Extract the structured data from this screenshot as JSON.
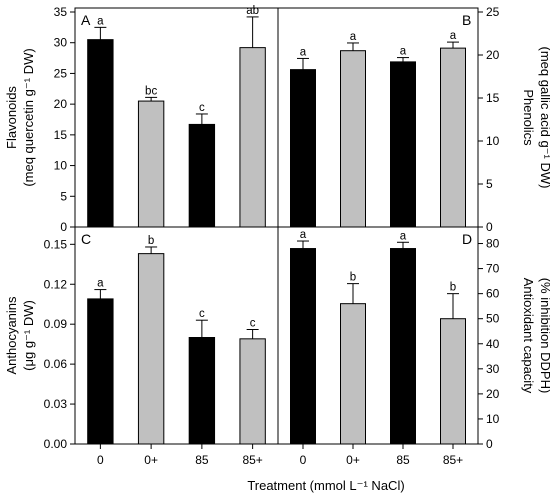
{
  "chart_data": [
    {
      "type": "bar",
      "panel": "A",
      "categories": [
        "0",
        "0+",
        "85",
        "85+"
      ],
      "values": [
        30.5,
        20.5,
        16.7,
        29.2
      ],
      "errors": [
        2.0,
        0.6,
        1.7,
        5.0
      ],
      "letters": [
        "a",
        "bc",
        "c",
        "ab"
      ],
      "colors": [
        "#000000",
        "#c0c0c0",
        "#000000",
        "#c0c0c0"
      ],
      "ylabel_lines": [
        "Flavonoids",
        "(meq quercetin g⁻¹ DW)"
      ],
      "ylim": [
        0,
        35
      ],
      "yticks": [
        "0",
        "5",
        "10",
        "15",
        "20",
        "25",
        "30",
        "35"
      ],
      "axis_side": "left"
    },
    {
      "type": "bar",
      "panel": "B",
      "categories": [
        "0",
        "0+",
        "85",
        "85+"
      ],
      "values": [
        18.3,
        20.5,
        19.2,
        20.8
      ],
      "errors": [
        1.3,
        0.9,
        0.5,
        0.7
      ],
      "letters": [
        "a",
        "a",
        "a",
        "a"
      ],
      "colors": [
        "#000000",
        "#c0c0c0",
        "#000000",
        "#c0c0c0"
      ],
      "ylabel_lines": [
        "Phenolics",
        "(meq gallic acid g⁻¹ DW)"
      ],
      "ylim": [
        0,
        25
      ],
      "yticks": [
        "0",
        "5",
        "10",
        "15",
        "20",
        "25"
      ],
      "axis_side": "right"
    },
    {
      "type": "bar",
      "panel": "C",
      "categories": [
        "0",
        "0+",
        "85",
        "85+"
      ],
      "values": [
        0.109,
        0.143,
        0.08,
        0.079
      ],
      "errors": [
        0.007,
        0.005,
        0.013,
        0.007
      ],
      "letters": [
        "a",
        "b",
        "c",
        "c"
      ],
      "colors": [
        "#000000",
        "#c0c0c0",
        "#000000",
        "#c0c0c0"
      ],
      "ylabel_lines": [
        "Anthocyanins",
        "(μg g⁻¹ DW)"
      ],
      "ylim": [
        0,
        0.16
      ],
      "yticks": [
        "0.00",
        "0.03",
        "0.06",
        "0.09",
        "0.12",
        "0.15"
      ],
      "axis_side": "left"
    },
    {
      "type": "bar",
      "panel": "D",
      "categories": [
        "0",
        "0+",
        "85",
        "85+"
      ],
      "values": [
        78,
        56,
        78,
        50
      ],
      "errors": [
        3.0,
        8.0,
        2.5,
        10.0
      ],
      "letters": [
        "a",
        "b",
        "a",
        "b"
      ],
      "colors": [
        "#000000",
        "#c0c0c0",
        "#000000",
        "#c0c0c0"
      ],
      "ylabel_lines": [
        "Antioxidant capacity",
        "(% inhibition DDPH)"
      ],
      "ylim": [
        0,
        85
      ],
      "yticks": [
        "0",
        "10",
        "20",
        "30",
        "40",
        "50",
        "60",
        "70",
        "80"
      ],
      "axis_side": "right"
    }
  ],
  "xlabel": "Treatment (mmol L⁻¹ NaCl)"
}
